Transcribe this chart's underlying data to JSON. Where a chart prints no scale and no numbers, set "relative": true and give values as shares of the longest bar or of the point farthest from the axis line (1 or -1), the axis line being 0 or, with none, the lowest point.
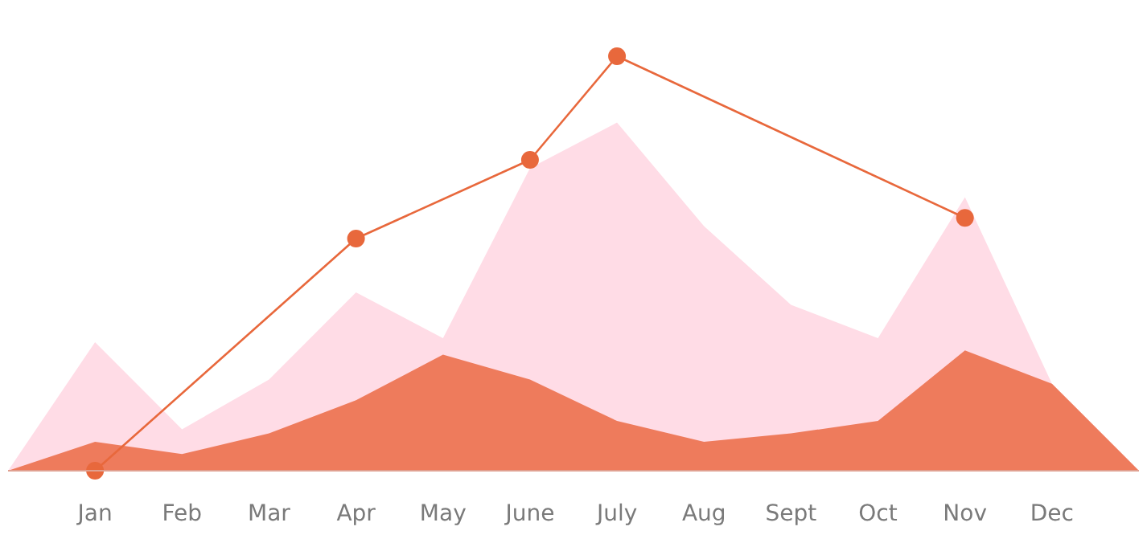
{
  "chart_data": {
    "type": "area",
    "relative": true,
    "categories": [
      null,
      "Jan",
      "Feb",
      "Mar",
      "Apr",
      "May",
      "June",
      "July",
      "Aug",
      "Sept",
      "Oct",
      "Nov",
      "Dec",
      null
    ],
    "series": [
      {
        "color": "#ffdce6",
        "values": [
          0,
          0.31,
          0.1,
          0.22,
          0.43,
          0.32,
          0.73,
          0.84,
          0.59,
          0.4,
          0.32,
          0.66,
          0.21,
          0
        ]
      },
      {
        "color": "#ee7b5c",
        "values": [
          0,
          0.07,
          0.04,
          0.09,
          0.17,
          0.28,
          0.22,
          0.12,
          0.07,
          0.09,
          0.12,
          0.29,
          0.21,
          0
        ]
      },
      {
        "type": "line",
        "color": "#e8683c",
        "marker": "circle",
        "x": [
          "Jan",
          "Apr",
          "June",
          "July",
          "Nov"
        ],
        "values": [
          0,
          0.56,
          0.75,
          1,
          0.61
        ]
      }
    ],
    "grid": false
  }
}
